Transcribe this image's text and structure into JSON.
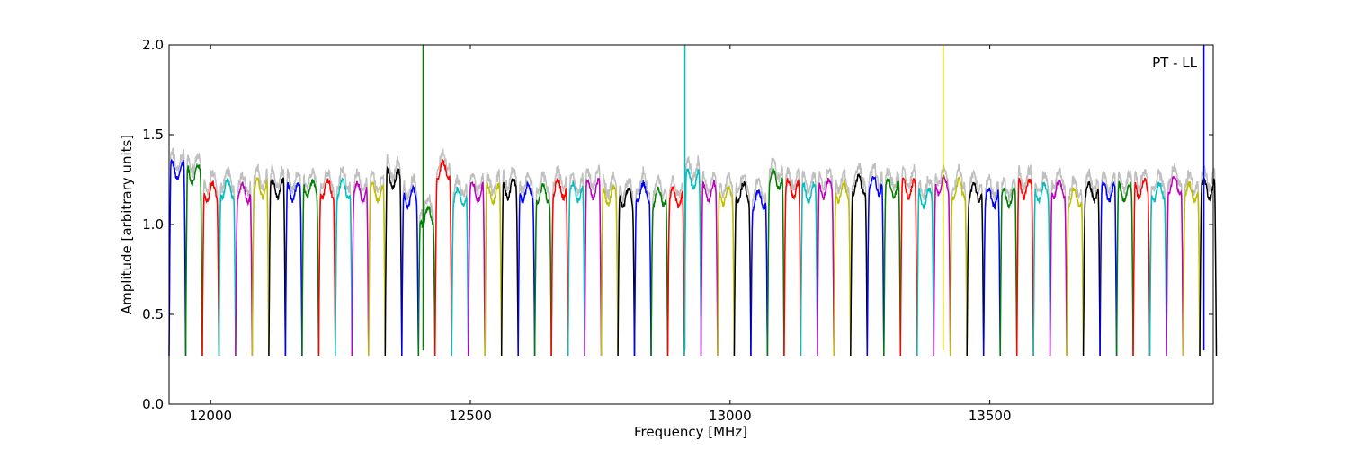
{
  "chart_data": {
    "type": "line",
    "title": "",
    "annotation": "PT - LL",
    "xlabel": "Frequency [MHz]",
    "ylabel": "Amplitude [arbitrary units]",
    "xlim": [
      11920,
      13930
    ],
    "ylim": [
      0,
      2.0
    ],
    "x_ticks": [
      12000,
      12500,
      13000,
      13500
    ],
    "y_ticks": [
      0.0,
      0.5,
      1.0,
      1.5,
      2.0
    ],
    "x_tick_labels": [
      "12000",
      "12500",
      "13000",
      "13500"
    ],
    "y_tick_labels": [
      "0.0",
      "0.5",
      "1.0",
      "1.5",
      "2.0"
    ],
    "grid": false,
    "channel_start_mhz": 11920,
    "channel_width_mhz": 32,
    "series_colors": [
      "#0000ff",
      "#008000",
      "#ff0000",
      "#00bfbf",
      "#bf00bf",
      "#bfbf00",
      "#000000"
    ],
    "reference_series_color": "#bfbfbf",
    "channel_levels": [
      1.3,
      1.28,
      1.18,
      1.2,
      1.18,
      1.2,
      1.2,
      1.18,
      1.2,
      1.2,
      1.2,
      1.18,
      1.18,
      1.25,
      1.15,
      1.05,
      1.3,
      1.15,
      1.18,
      1.17,
      1.2,
      1.18,
      1.17,
      1.2,
      1.18,
      1.2,
      1.16,
      1.15,
      1.18,
      1.15,
      1.15,
      1.25,
      1.18,
      1.16,
      1.18,
      1.14,
      1.25,
      1.2,
      1.18,
      1.2,
      1.18,
      1.22,
      1.22,
      1.2,
      1.2,
      1.15,
      1.22,
      1.2,
      1.18,
      1.15,
      1.15,
      1.2,
      1.18,
      1.2,
      1.15,
      1.18,
      1.18,
      1.18,
      1.2,
      1.18,
      1.22,
      1.18,
      1.2
    ]
  }
}
